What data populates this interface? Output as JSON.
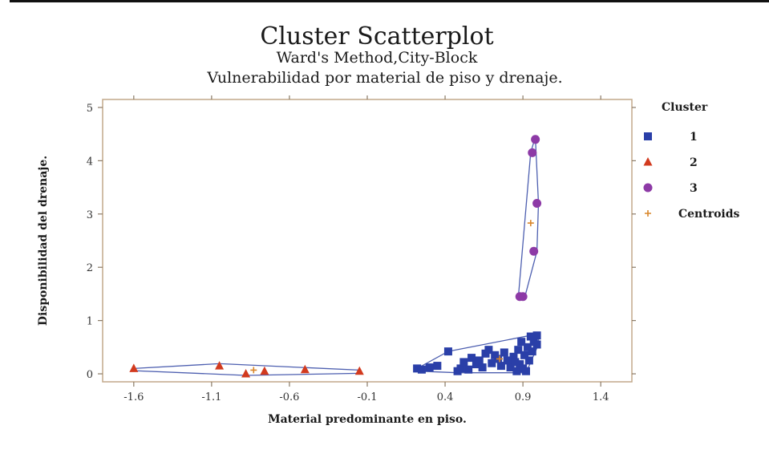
{
  "chart_data": {
    "type": "scatter",
    "title": "Cluster Scatterplot",
    "subtitle_1": "Ward's Method,City-Block",
    "subtitle_2": "Vulnerabilidad por material de piso y drenaje.",
    "xlabel": "Material predominante en piso.",
    "ylabel": "Disponibilidad del drenaje.",
    "xlim": [
      -1.8,
      1.6
    ],
    "ylim": [
      -0.15,
      5.15
    ],
    "xticks": [
      -1.6,
      -1.1,
      -0.6,
      -0.1,
      0.4,
      0.9,
      1.4
    ],
    "xtick_labels": [
      "-1.6",
      "-1.1",
      "-0.6",
      "-0.1",
      "0.4",
      "0.9",
      "1.4"
    ],
    "yticks": [
      0,
      1,
      2,
      3,
      4,
      5
    ],
    "ytick_labels": [
      "0",
      "1",
      "2",
      "3",
      "4",
      "5"
    ],
    "grid": false,
    "legend_placement": "right",
    "legend_title": "Cluster",
    "series": [
      {
        "name": "1",
        "marker": "square",
        "color": "#2a3fa8",
        "points": [
          [
            0.22,
            0.1
          ],
          [
            0.25,
            0.08
          ],
          [
            0.3,
            0.12
          ],
          [
            0.35,
            0.15
          ],
          [
            0.42,
            0.42
          ],
          [
            0.48,
            0.05
          ],
          [
            0.5,
            0.1
          ],
          [
            0.52,
            0.22
          ],
          [
            0.55,
            0.08
          ],
          [
            0.57,
            0.3
          ],
          [
            0.6,
            0.18
          ],
          [
            0.62,
            0.25
          ],
          [
            0.64,
            0.12
          ],
          [
            0.66,
            0.38
          ],
          [
            0.68,
            0.45
          ],
          [
            0.7,
            0.2
          ],
          [
            0.72,
            0.35
          ],
          [
            0.74,
            0.28
          ],
          [
            0.76,
            0.15
          ],
          [
            0.78,
            0.4
          ],
          [
            0.8,
            0.25
          ],
          [
            0.82,
            0.12
          ],
          [
            0.84,
            0.32
          ],
          [
            0.86,
            0.05
          ],
          [
            0.87,
            0.45
          ],
          [
            0.88,
            0.18
          ],
          [
            0.89,
            0.6
          ],
          [
            0.9,
            0.1
          ],
          [
            0.91,
            0.35
          ],
          [
            0.92,
            0.05
          ],
          [
            0.93,
            0.5
          ],
          [
            0.94,
            0.25
          ],
          [
            0.95,
            0.7
          ],
          [
            0.96,
            0.42
          ],
          [
            0.97,
            0.6
          ],
          [
            0.99,
            0.55
          ],
          [
            0.99,
            0.72
          ],
          [
            0.85,
            0.22
          ]
        ],
        "hull": [
          [
            0.22,
            0.1
          ],
          [
            0.42,
            0.42
          ],
          [
            1.0,
            0.75
          ],
          [
            1.0,
            0.55
          ],
          [
            0.92,
            0.02
          ],
          [
            0.48,
            0.02
          ],
          [
            0.22,
            0.05
          ]
        ]
      },
      {
        "name": "2",
        "marker": "triangle",
        "color": "#d23a1e",
        "points": [
          [
            -1.6,
            0.1
          ],
          [
            -1.05,
            0.15
          ],
          [
            -0.88,
            0.0
          ],
          [
            -0.76,
            0.05
          ],
          [
            -0.5,
            0.08
          ],
          [
            -0.15,
            0.05
          ]
        ],
        "hull": [
          [
            -1.6,
            0.1
          ],
          [
            -1.05,
            0.19
          ],
          [
            -0.15,
            0.07
          ],
          [
            -0.15,
            0.01
          ],
          [
            -0.88,
            -0.03
          ],
          [
            -1.6,
            0.06
          ]
        ]
      },
      {
        "name": "3",
        "marker": "circle",
        "color": "#8d3aa6",
        "points": [
          [
            0.98,
            4.4
          ],
          [
            0.96,
            4.15
          ],
          [
            0.99,
            3.2
          ],
          [
            0.97,
            2.3
          ],
          [
            0.88,
            1.45
          ],
          [
            0.9,
            1.45
          ]
        ],
        "hull": [
          [
            0.98,
            4.45
          ],
          [
            1.0,
            3.2
          ],
          [
            0.99,
            2.3
          ],
          [
            0.91,
            1.42
          ],
          [
            0.87,
            1.42
          ],
          [
            0.95,
            4.15
          ]
        ]
      }
    ],
    "centroids": {
      "name": "Centroids",
      "marker": "plus",
      "color": "#d9862a",
      "points": [
        [
          0.75,
          0.28
        ],
        [
          -0.83,
          0.07
        ],
        [
          0.95,
          2.83
        ]
      ]
    }
  }
}
